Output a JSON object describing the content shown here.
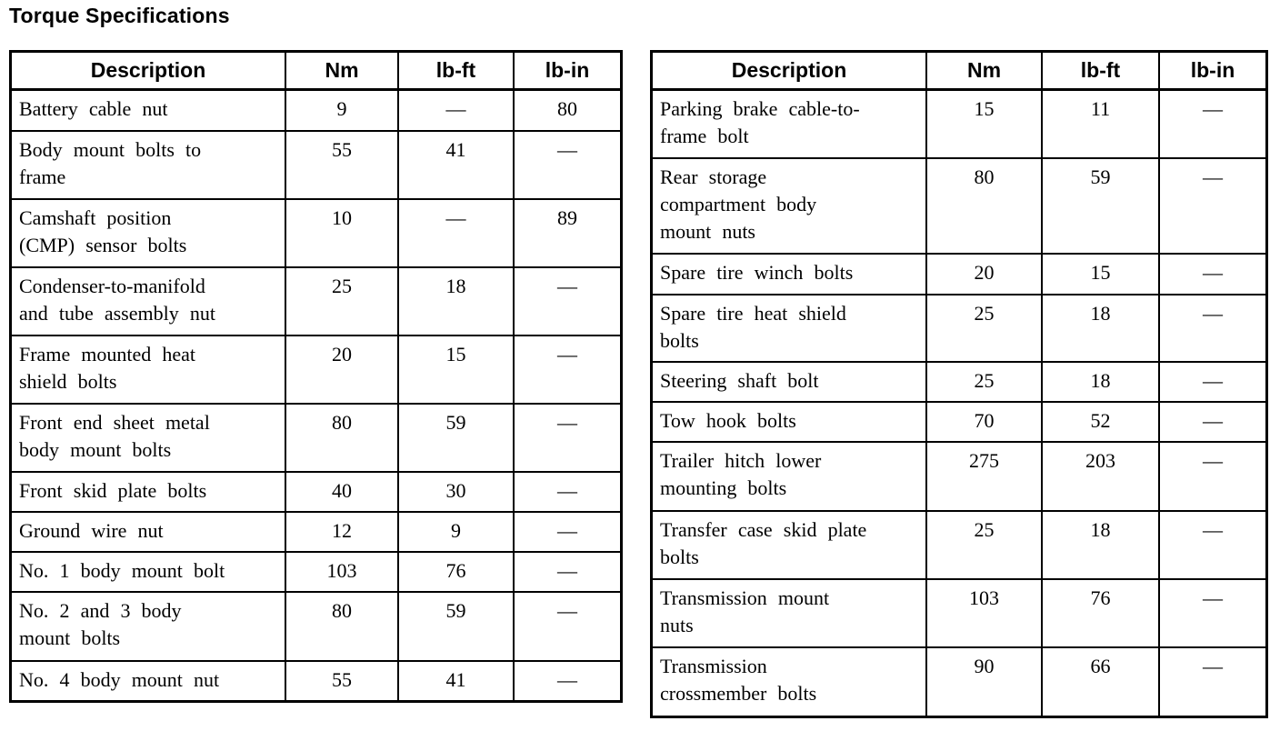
{
  "title": "Torque Specifications",
  "tables": [
    {
      "id": "left",
      "headers": [
        "Description",
        "Nm",
        "lb-ft",
        "lb-in"
      ],
      "rows": [
        [
          "Battery cable nut",
          "9",
          "—",
          "80"
        ],
        [
          "Body mount bolts to frame",
          "55",
          "41",
          "—"
        ],
        [
          "Camshaft position (CMP) sensor bolts",
          "10",
          "—",
          "89"
        ],
        [
          "Condenser-to-manifold and tube assembly nut",
          "25",
          "18",
          "—"
        ],
        [
          "Frame mounted heat shield bolts",
          "20",
          "15",
          "—"
        ],
        [
          "Front end sheet metal body mount bolts",
          "80",
          "59",
          "—"
        ],
        [
          "Front skid plate bolts",
          "40",
          "30",
          "—"
        ],
        [
          "Ground wire nut",
          "12",
          "9",
          "—"
        ],
        [
          "No. 1 body mount bolt",
          "103",
          "76",
          "—"
        ],
        [
          "No. 2 and 3 body mount bolts",
          "80",
          "59",
          "—"
        ],
        [
          "No. 4 body mount nut",
          "55",
          "41",
          "—"
        ]
      ]
    },
    {
      "id": "right",
      "headers": [
        "Description",
        "Nm",
        "lb-ft",
        "lb-in"
      ],
      "rows": [
        [
          "Parking brake cable-to-frame bolt",
          "15",
          "11",
          "—"
        ],
        [
          "Rear storage compartment body mount nuts",
          "80",
          "59",
          "—"
        ],
        [
          "Spare tire winch bolts",
          "20",
          "15",
          "—"
        ],
        [
          "Spare tire heat shield bolts",
          "25",
          "18",
          "—"
        ],
        [
          "Steering shaft bolt",
          "25",
          "18",
          "—"
        ],
        [
          "Tow hook bolts",
          "70",
          "52",
          "—"
        ],
        [
          "Trailer hitch lower mounting bolts",
          "275",
          "203",
          "—"
        ],
        [
          "Transfer case skid plate bolts",
          "25",
          "18",
          "—"
        ],
        [
          "Transmission mount nuts",
          "103",
          "76",
          "—"
        ],
        [
          "Transmission crossmember bolts",
          "90",
          "66",
          "—"
        ]
      ]
    }
  ]
}
